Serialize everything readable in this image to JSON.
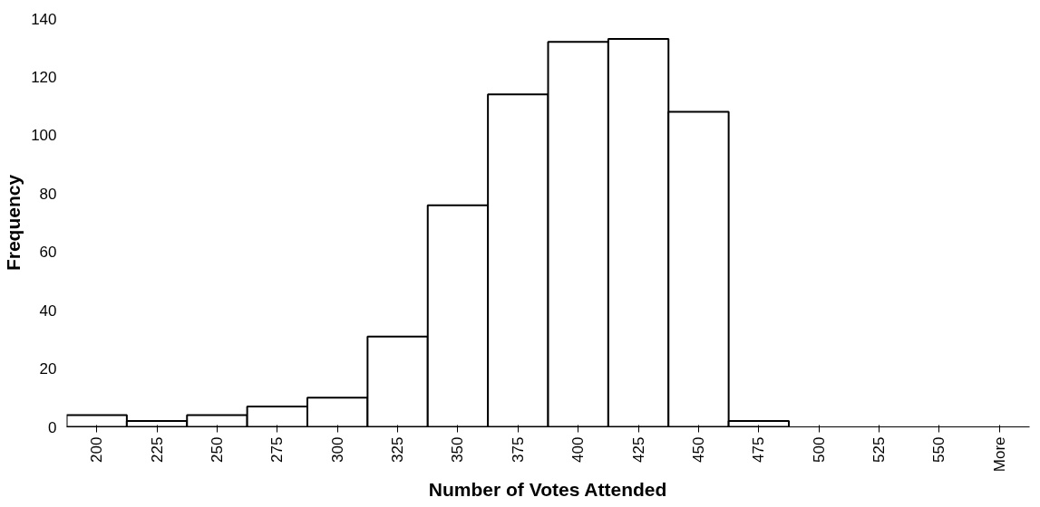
{
  "chart_data": {
    "type": "bar",
    "xlabel": "Number of Votes Attended",
    "ylabel": "Frequency",
    "categories": [
      "200",
      "225",
      "250",
      "275",
      "300",
      "325",
      "350",
      "375",
      "400",
      "425",
      "450",
      "475",
      "500",
      "525",
      "550",
      "More"
    ],
    "values": [
      4,
      2,
      4,
      7,
      10,
      31,
      76,
      114,
      132,
      133,
      108,
      2,
      0,
      0,
      0,
      0
    ],
    "color": "#ffffff",
    "ylim": [
      0,
      140
    ],
    "yticks": [
      0,
      20,
      40,
      60,
      80,
      100,
      120,
      140
    ],
    "grid": false
  }
}
